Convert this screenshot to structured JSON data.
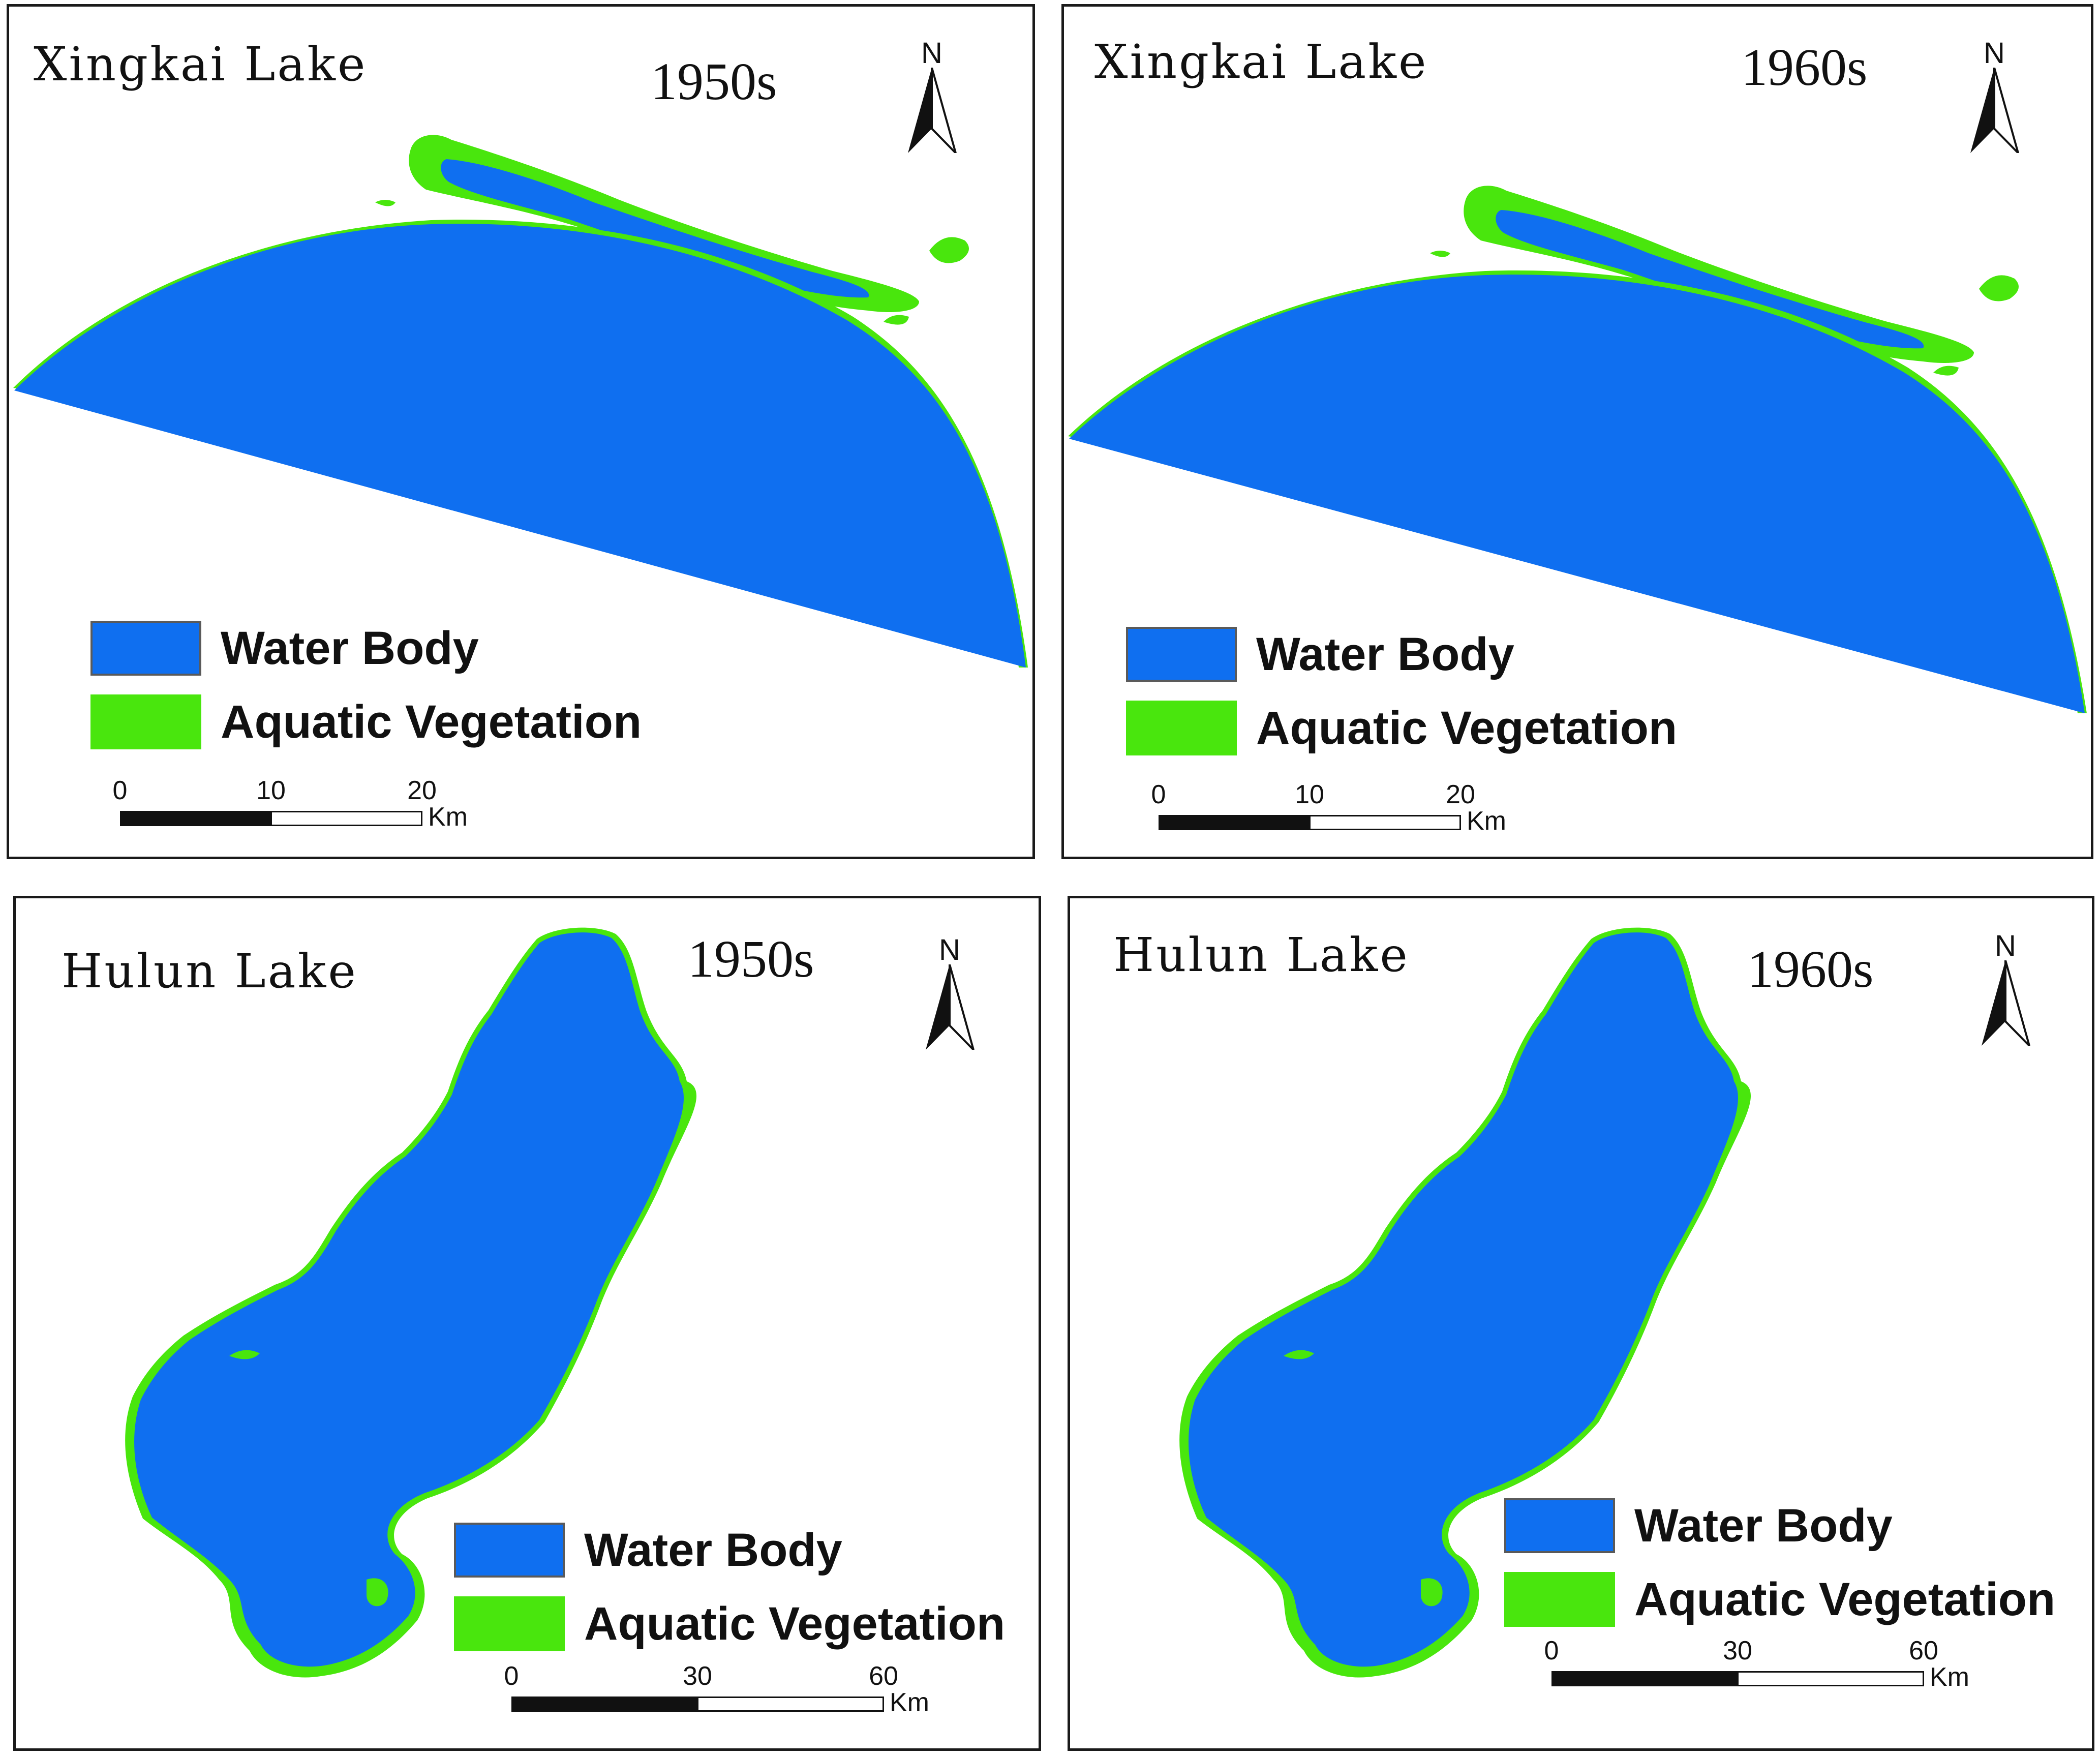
{
  "colors": {
    "water": "#0f6ff0",
    "vegetation": "#49e60d",
    "frame": "#1a1a1a"
  },
  "panels": [
    {
      "lake": "Xingkai Lake",
      "decade": "1950s",
      "north_label": "N",
      "legend": {
        "water": "Water Body",
        "vegetation": "Aquatic Vegetation"
      },
      "scale": {
        "ticks": [
          "0",
          "10",
          "20"
        ],
        "unit": "Km"
      }
    },
    {
      "lake": "Xingkai Lake",
      "decade": "1960s",
      "north_label": "N",
      "legend": {
        "water": "Water Body",
        "vegetation": "Aquatic Vegetation"
      },
      "scale": {
        "ticks": [
          "0",
          "10",
          "20"
        ],
        "unit": "Km"
      }
    },
    {
      "lake": "Hulun Lake",
      "decade": "1950s",
      "north_label": "N",
      "legend": {
        "water": "Water Body",
        "vegetation": "Aquatic Vegetation"
      },
      "scale": {
        "ticks": [
          "0",
          "30",
          "60"
        ],
        "unit": "Km"
      }
    },
    {
      "lake": "Hulun Lake",
      "decade": "1960s",
      "north_label": "N",
      "legend": {
        "water": "Water Body",
        "vegetation": "Aquatic Vegetation"
      },
      "scale": {
        "ticks": [
          "0",
          "30",
          "60"
        ],
        "unit": "Km"
      }
    }
  ]
}
